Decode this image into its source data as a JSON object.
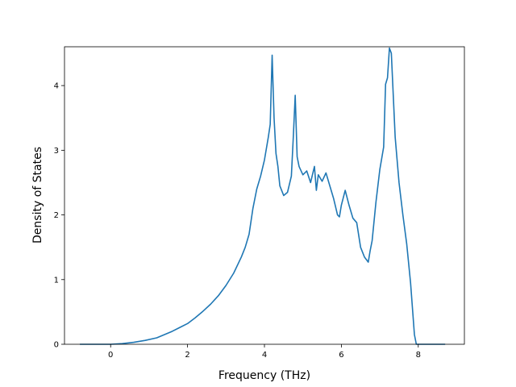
{
  "chart_data": {
    "type": "line",
    "title": "",
    "xlabel": "Frequency (THz)",
    "ylabel": "Density of States",
    "xlim": [
      -1.2,
      9.2
    ],
    "ylim": [
      0,
      4.6
    ],
    "xticks": [
      0,
      2,
      4,
      6,
      8
    ],
    "yticks": [
      0,
      1,
      2,
      3,
      4
    ],
    "grid": false,
    "legend": "none",
    "series": [
      {
        "color": "#1f77b4",
        "x": [
          -0.8,
          -0.4,
          0.0,
          0.3,
          0.6,
          0.9,
          1.2,
          1.4,
          1.6,
          1.8,
          2.0,
          2.2,
          2.4,
          2.6,
          2.8,
          3.0,
          3.2,
          3.4,
          3.5,
          3.6,
          3.7,
          3.8,
          3.9,
          4.0,
          4.1,
          4.15,
          4.2,
          4.25,
          4.3,
          4.35,
          4.4,
          4.5,
          4.6,
          4.7,
          4.75,
          4.8,
          4.85,
          4.9,
          5.0,
          5.1,
          5.2,
          5.3,
          5.35,
          5.4,
          5.5,
          5.6,
          5.7,
          5.8,
          5.9,
          5.95,
          6.0,
          6.1,
          6.2,
          6.3,
          6.4,
          6.5,
          6.6,
          6.7,
          6.75,
          6.8,
          6.9,
          7.0,
          7.1,
          7.15,
          7.2,
          7.25,
          7.3,
          7.4,
          7.5,
          7.6,
          7.7,
          7.8,
          7.9,
          7.95,
          8.0,
          8.3,
          8.7
        ],
        "y": [
          0,
          0,
          0,
          0.01,
          0.03,
          0.06,
          0.1,
          0.15,
          0.2,
          0.26,
          0.32,
          0.41,
          0.51,
          0.62,
          0.75,
          0.91,
          1.1,
          1.35,
          1.5,
          1.7,
          2.1,
          2.4,
          2.6,
          2.85,
          3.2,
          3.4,
          4.47,
          3.5,
          2.95,
          2.75,
          2.45,
          2.3,
          2.35,
          2.6,
          3.2,
          3.85,
          2.9,
          2.75,
          2.62,
          2.68,
          2.5,
          2.75,
          2.38,
          2.62,
          2.52,
          2.65,
          2.45,
          2.25,
          2.0,
          1.97,
          2.15,
          2.38,
          2.15,
          1.95,
          1.88,
          1.5,
          1.35,
          1.27,
          1.45,
          1.6,
          2.2,
          2.7,
          3.05,
          4.02,
          4.12,
          4.58,
          4.5,
          3.2,
          2.5,
          2.0,
          1.55,
          0.95,
          0.15,
          0.0,
          0.0,
          0.0,
          0.0
        ]
      }
    ]
  }
}
